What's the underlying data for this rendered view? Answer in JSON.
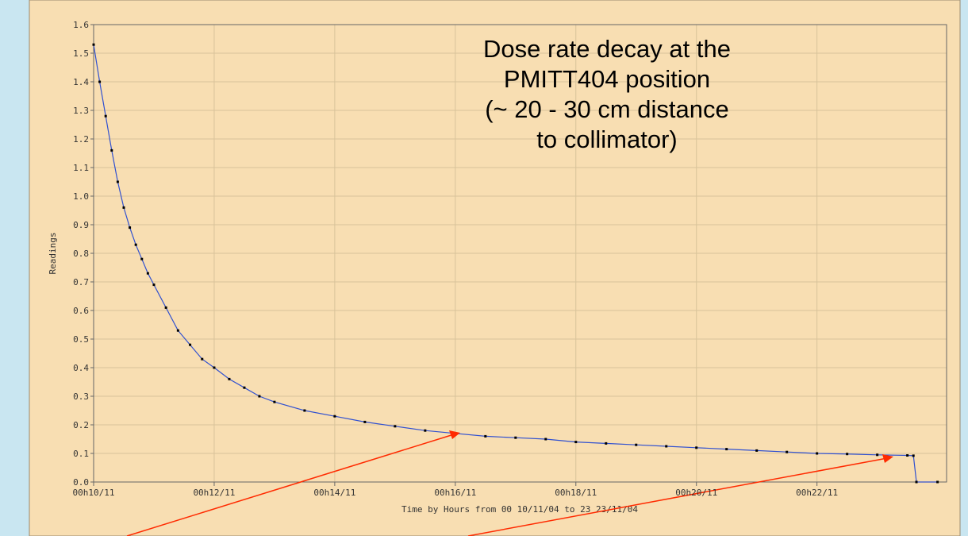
{
  "chart_data": {
    "type": "line",
    "annotation": [
      "Dose rate decay at the",
      "PMITT404 position",
      "(~ 20 - 30 cm distance",
      "to collimator)"
    ],
    "ylabel": "Readings",
    "xlabel": "Time by Hours  from 00 10/11/04 to 23 23/11/04",
    "xlim": [
      0,
      14.15
    ],
    "xticks": [
      {
        "value": 0,
        "label": "00h10/11"
      },
      {
        "value": 2,
        "label": "00h12/11"
      },
      {
        "value": 4,
        "label": "00h14/11"
      },
      {
        "value": 6,
        "label": "00h16/11"
      },
      {
        "value": 8,
        "label": "00h18/11"
      },
      {
        "value": 10,
        "label": "00h20/11"
      },
      {
        "value": 12,
        "label": "00h22/11"
      }
    ],
    "ylim": [
      0,
      1.6
    ],
    "yticks": [
      {
        "value": 0,
        "label": "0.0"
      },
      0.1,
      0.2,
      0.3,
      0.4,
      0.5,
      0.6,
      0.7,
      0.8,
      0.9,
      {
        "value": 1,
        "label": "1.0"
      },
      1.1,
      1.2,
      1.3,
      1.4,
      1.5,
      1.6
    ],
    "grid": true,
    "series": [
      {
        "color": "#3050d0",
        "marker_color": "#000000",
        "x": [
          0,
          0.1,
          0.2,
          0.3,
          0.4,
          0.5,
          0.6,
          0.7,
          0.8,
          0.9,
          1.0,
          1.2,
          1.4,
          1.6,
          1.8,
          2.0,
          2.25,
          2.5,
          2.75,
          3.0,
          3.5,
          4.0,
          4.5,
          5.0,
          5.5,
          6.0,
          6.5,
          7.0,
          7.5,
          8.0,
          8.5,
          9.0,
          9.5,
          10.0,
          10.5,
          11.0,
          11.5,
          12.0,
          12.5,
          13.0,
          13.5,
          13.6,
          13.65,
          14.0
        ],
        "values": [
          1.53,
          1.4,
          1.28,
          1.16,
          1.05,
          0.96,
          0.89,
          0.83,
          0.78,
          0.73,
          0.69,
          0.61,
          0.53,
          0.48,
          0.43,
          0.4,
          0.36,
          0.33,
          0.3,
          0.28,
          0.25,
          0.23,
          0.21,
          0.195,
          0.18,
          0.17,
          0.16,
          0.155,
          0.15,
          0.14,
          0.135,
          0.13,
          0.125,
          0.12,
          0.115,
          0.11,
          0.105,
          0.1,
          0.098,
          0.095,
          0.093,
          0.092,
          0,
          0
        ]
      }
    ]
  }
}
